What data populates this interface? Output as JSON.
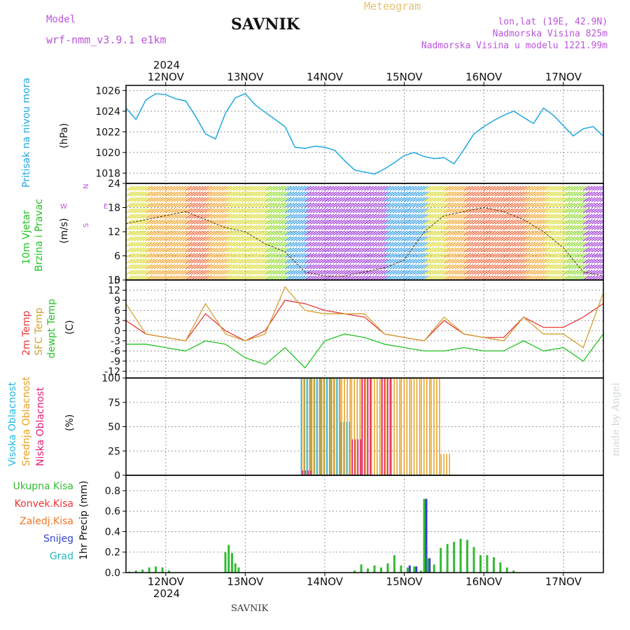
{
  "header": {
    "model_label": "Model",
    "model_name": "wrf-nmm_v3.9.1  e1km",
    "station": "SAVNIK",
    "meteogram": "Meteogram",
    "lonlat": "lon,lat (19E, 42.9N)",
    "altitude": "Nadmorska Visina 825m",
    "model_altitude": "Nadmorska Visina u modelu 1221.99m",
    "footer_station": "SAVNIK",
    "watermark": "made by Angel"
  },
  "colors": {
    "pressure": "#1fa8e0",
    "temp2m": "#e83c3c",
    "sfc": "#d4a030",
    "dewpt": "#22c422",
    "high_cloud": "#22b8e8",
    "mid_cloud": "#e8a020",
    "low_cloud": "#e0207a",
    "total_precip": "#33bb33",
    "conv_precip": "#ee3333",
    "frz_precip": "#ee7722",
    "snow": "#3344cc",
    "graupel": "#22bbbb",
    "title": "#bb55dd"
  },
  "chart_data": [
    {
      "type": "line",
      "panel": "pressure",
      "ylabel_lines": [
        "Pritisak na nivou mora"
      ],
      "unit": "(hPa)",
      "x": [
        "11NOV 12:00",
        "11NOV 15:00",
        "11NOV 18:00",
        "11NOV 21:00",
        "12NOV 00:00",
        "12NOV 03:00",
        "12NOV 06:00",
        "12NOV 09:00",
        "12NOV 12:00",
        "12NOV 15:00",
        "12NOV 18:00",
        "12NOV 21:00",
        "13NOV 00:00",
        "13NOV 03:00",
        "13NOV 06:00",
        "13NOV 09:00",
        "13NOV 12:00",
        "13NOV 15:00",
        "13NOV 18:00",
        "13NOV 21:00",
        "14NOV 00:00",
        "14NOV 03:00",
        "14NOV 06:00",
        "14NOV 09:00",
        "14NOV 12:00",
        "14NOV 15:00",
        "14NOV 18:00",
        "14NOV 21:00",
        "15NOV 00:00",
        "15NOV 03:00",
        "15NOV 06:00",
        "15NOV 09:00",
        "15NOV 12:00",
        "15NOV 15:00",
        "15NOV 18:00",
        "15NOV 21:00",
        "16NOV 00:00",
        "16NOV 03:00",
        "16NOV 06:00",
        "16NOV 09:00",
        "16NOV 12:00",
        "16NOV 15:00",
        "16NOV 18:00",
        "16NOV 21:00",
        "17NOV 00:00",
        "17NOV 03:00",
        "17NOV 06:00",
        "17NOV 09:00",
        "17NOV 12:00"
      ],
      "values": [
        1024.3,
        1023.2,
        1025.1,
        1025.7,
        1025.6,
        1025.2,
        1025.0,
        1023.5,
        1021.8,
        1021.3,
        1023.8,
        1025.3,
        1025.7,
        1024.6,
        1023.9,
        1023.2,
        1022.5,
        1020.5,
        1020.4,
        1020.6,
        1020.5,
        1020.2,
        1019.2,
        1018.3,
        1018.1,
        1017.9,
        1018.4,
        1019.0,
        1019.7,
        1020.0,
        1019.6,
        1019.4,
        1019.5,
        1018.9,
        1020.3,
        1021.8,
        1022.5,
        1023.1,
        1023.6,
        1024.0,
        1023.4,
        1022.8,
        1024.3,
        1023.6,
        1022.6,
        1021.6,
        1022.3,
        1022.5,
        1021.6
      ],
      "ylim": [
        1017,
        1026.5
      ],
      "yticks": [
        1018,
        1020,
        1022,
        1024,
        1026
      ]
    },
    {
      "type": "barbs",
      "panel": "wind",
      "ylabel_lines": [
        "10m Vjetar",
        "Brzina i Pravac"
      ],
      "unit": "(m/s)",
      "compass": [
        "N",
        "S",
        "E",
        "W"
      ],
      "x": [
        "11NOV 12:00",
        "11NOV 18:00",
        "12NOV 00:00",
        "12NOV 06:00",
        "12NOV 12:00",
        "12NOV 18:00",
        "13NOV 00:00",
        "13NOV 06:00",
        "13NOV 12:00",
        "13NOV 18:00",
        "14NOV 00:00",
        "14NOV 06:00",
        "14NOV 12:00",
        "14NOV 18:00",
        "15NOV 00:00",
        "15NOV 06:00",
        "15NOV 12:00",
        "15NOV 18:00",
        "16NOV 00:00",
        "16NOV 06:00",
        "16NOV 12:00",
        "16NOV 18:00",
        "17NOV 00:00",
        "17NOV 06:00",
        "17NOV 12:00"
      ],
      "speed": [
        14,
        15,
        16,
        17,
        15,
        13,
        12,
        9,
        7,
        2,
        1,
        1,
        2,
        3,
        5,
        12,
        16,
        17,
        18,
        17,
        15,
        12,
        8,
        2,
        1
      ],
      "ylim": [
        0,
        24
      ],
      "yticks": [
        0,
        6,
        12,
        18,
        24
      ]
    },
    {
      "type": "line",
      "panel": "temperature",
      "ylabel_lines": [
        "2m Temp",
        "SFC Temp",
        "dewpt Temp"
      ],
      "unit": "(C)",
      "x": [
        "11NOV 12:00",
        "11NOV 18:00",
        "12NOV 00:00",
        "12NOV 06:00",
        "12NOV 12:00",
        "12NOV 18:00",
        "13NOV 00:00",
        "13NOV 06:00",
        "13NOV 12:00",
        "13NOV 18:00",
        "14NOV 00:00",
        "14NOV 06:00",
        "14NOV 12:00",
        "14NOV 18:00",
        "15NOV 00:00",
        "15NOV 06:00",
        "15NOV 12:00",
        "15NOV 18:00",
        "16NOV 00:00",
        "16NOV 06:00",
        "16NOV 12:00",
        "16NOV 18:00",
        "17NOV 00:00",
        "17NOV 06:00",
        "17NOV 12:00"
      ],
      "series": [
        {
          "name": "2m Temp",
          "values": [
            3,
            -1,
            -2,
            -3,
            5,
            0,
            -3,
            0,
            9,
            8,
            6,
            5,
            4,
            -1,
            -2,
            -3,
            3,
            -1,
            -2,
            -2,
            4,
            1,
            1,
            4,
            8
          ]
        },
        {
          "name": "SFC Temp",
          "values": [
            8,
            -1,
            -2,
            -3,
            8,
            -1,
            -3,
            -1,
            13,
            6,
            5,
            5,
            5,
            -1,
            -2,
            -3,
            4,
            -1,
            -2,
            -3,
            4,
            -1,
            -1,
            -5,
            11
          ]
        },
        {
          "name": "dewpt Temp",
          "values": [
            -4,
            -4,
            -5,
            -6,
            -3,
            -4,
            -8,
            -10,
            -5,
            -11,
            -3,
            -1,
            -2,
            -4,
            -5,
            -6,
            -6,
            -5,
            -6,
            -6,
            -3,
            -6,
            -5,
            -9,
            -1
          ]
        }
      ],
      "ylim": [
        -14,
        15
      ],
      "yticks": [
        -12,
        -9,
        -6,
        -3,
        0,
        3,
        6,
        9,
        12,
        15
      ]
    },
    {
      "type": "bar",
      "panel": "clouds",
      "ylabel_lines": [
        "Visoka Oblacnost",
        "Srednja Oblacnost",
        "Niska Oblacnost"
      ],
      "unit": "(%)",
      "x": [
        "13NOV 18:00",
        "13NOV 21:00",
        "14NOV 00:00",
        "14NOV 03:00",
        "14NOV 06:00",
        "14NOV 09:00",
        "14NOV 12:00",
        "14NOV 15:00",
        "14NOV 18:00",
        "14NOV 21:00",
        "15NOV 00:00",
        "15NOV 03:00",
        "15NOV 06:00",
        "15NOV 09:00",
        "15NOV 12:00"
      ],
      "series": [
        {
          "name": "Visoka Oblacnost",
          "values": [
            100,
            100,
            100,
            100,
            55,
            0,
            0,
            0,
            0,
            0,
            0,
            0,
            0,
            0,
            0
          ]
        },
        {
          "name": "Srednja Oblacnost",
          "values": [
            100,
            100,
            100,
            100,
            100,
            100,
            100,
            100,
            100,
            100,
            100,
            100,
            100,
            100,
            22
          ]
        },
        {
          "name": "Niska Oblacnost",
          "values": [
            5,
            0,
            0,
            0,
            0,
            37,
            100,
            0,
            100,
            0,
            0,
            0,
            0,
            0,
            0
          ]
        }
      ],
      "ylim": [
        0,
        100
      ],
      "yticks": [
        0,
        25,
        50,
        75,
        100
      ]
    },
    {
      "type": "bar",
      "panel": "precipitation",
      "legend": [
        "Ukupna Kisa",
        "Konvek.Kisa",
        "Zaledj.Kisa",
        "Snijeg",
        "Grad"
      ],
      "ylabel": "1hr Precip (mm)",
      "x": [
        "11NOV 13:00",
        "11NOV 15:00",
        "11NOV 17:00",
        "11NOV 19:00",
        "11NOV 21:00",
        "11NOV 23:00",
        "12NOV 01:00",
        "12NOV 18:00",
        "12NOV 19:00",
        "12NOV 20:00",
        "12NOV 21:00",
        "12NOV 22:00",
        "14NOV 09:00",
        "14NOV 11:00",
        "14NOV 13:00",
        "14NOV 15:00",
        "14NOV 17:00",
        "14NOV 19:00",
        "14NOV 21:00",
        "14NOV 23:00",
        "15NOV 01:00",
        "15NOV 03:00",
        "15NOV 05:00",
        "15NOV 06:00",
        "15NOV 07:00",
        "15NOV 09:00",
        "15NOV 11:00",
        "15NOV 13:00",
        "15NOV 15:00",
        "15NOV 17:00",
        "15NOV 19:00",
        "15NOV 21:00",
        "15NOV 23:00",
        "16NOV 01:00",
        "16NOV 03:00",
        "16NOV 05:00",
        "16NOV 07:00",
        "16NOV 09:00"
      ],
      "series": [
        {
          "name": "Ukupna Kisa",
          "values": [
            0.01,
            0.02,
            0.03,
            0.05,
            0.06,
            0.05,
            0.02,
            0.2,
            0.27,
            0.19,
            0.09,
            0.05,
            0.02,
            0.08,
            0.04,
            0.07,
            0.05,
            0.09,
            0.17,
            0.07,
            0.05,
            0.06,
            0.02,
            0.72,
            0.14,
            0.08,
            0.24,
            0.28,
            0.3,
            0.33,
            0.32,
            0.25,
            0.17,
            0.17,
            0.15,
            0.1,
            0.05,
            0.02
          ]
        },
        {
          "name": "Snijeg",
          "values": [
            0,
            0,
            0,
            0,
            0,
            0,
            0,
            0,
            0,
            0,
            0,
            0,
            0,
            0,
            0,
            0,
            0,
            0,
            0,
            0,
            0.07,
            0.06,
            0,
            0.72,
            0.14,
            0,
            0,
            0,
            0,
            0,
            0,
            0,
            0,
            0,
            0,
            0,
            0,
            0
          ]
        }
      ],
      "ylim": [
        0,
        0.95
      ],
      "yticks": [
        0,
        0.2,
        0.4,
        0.6,
        0.8
      ]
    }
  ],
  "time_axis": {
    "year": "2024",
    "days": [
      "12NOV",
      "13NOV",
      "14NOV",
      "15NOV",
      "16NOV",
      "17NOV"
    ]
  }
}
